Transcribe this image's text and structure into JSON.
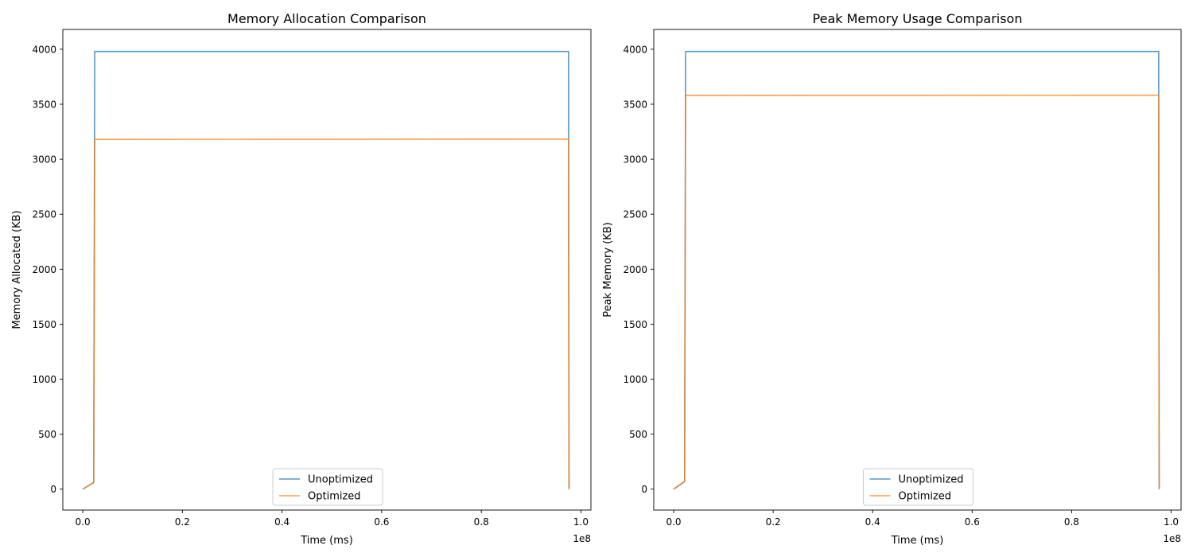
{
  "colors": {
    "unoptimized": "#1f77b4",
    "optimized": "#ff7f0e"
  },
  "chart_data": [
    {
      "type": "line",
      "title": "Memory Allocation Comparison",
      "xlabel": "Time (ms)",
      "ylabel": "Memory Allocated (KB)",
      "x_offset_label": "1e8",
      "xlim": [
        -0.04,
        1.02
      ],
      "ylim": [
        -190,
        4180
      ],
      "x_ticks": [
        0.0,
        0.2,
        0.4,
        0.6,
        0.8,
        1.0
      ],
      "x_tick_labels": [
        "0.0",
        "0.2",
        "0.4",
        "0.6",
        "0.8",
        "1.0"
      ],
      "y_ticks": [
        0,
        500,
        1000,
        1500,
        2000,
        2500,
        3000,
        3500,
        4000
      ],
      "y_tick_labels": [
        "0",
        "500",
        "1000",
        "1500",
        "2000",
        "2500",
        "3000",
        "3500",
        "4000"
      ],
      "grid": false,
      "legend_position": "lower center",
      "series": [
        {
          "name": "Unoptimized",
          "color": "#1f77b4",
          "x": [
            0.0,
            0.022,
            0.024,
            0.975,
            0.976
          ],
          "y": [
            0,
            60,
            3980,
            3980,
            0
          ]
        },
        {
          "name": "Optimized",
          "color": "#ff7f0e",
          "x": [
            0.0,
            0.022,
            0.024,
            0.975,
            0.976
          ],
          "y": [
            0,
            60,
            3180,
            3183,
            0
          ]
        }
      ]
    },
    {
      "type": "line",
      "title": "Peak Memory Usage Comparison",
      "xlabel": "Time (ms)",
      "ylabel": "Peak Memory (KB)",
      "x_offset_label": "1e8",
      "xlim": [
        -0.04,
        1.02
      ],
      "ylim": [
        -190,
        4180
      ],
      "x_ticks": [
        0.0,
        0.2,
        0.4,
        0.6,
        0.8,
        1.0
      ],
      "x_tick_labels": [
        "0.0",
        "0.2",
        "0.4",
        "0.6",
        "0.8",
        "1.0"
      ],
      "y_ticks": [
        0,
        500,
        1000,
        1500,
        2000,
        2500,
        3000,
        3500,
        4000
      ],
      "y_tick_labels": [
        "0",
        "500",
        "1000",
        "1500",
        "2000",
        "2500",
        "3000",
        "3500",
        "4000"
      ],
      "grid": false,
      "legend_position": "lower center",
      "series": [
        {
          "name": "Unoptimized",
          "color": "#1f77b4",
          "x": [
            0.0,
            0.022,
            0.024,
            0.975,
            0.976
          ],
          "y": [
            0,
            70,
            3980,
            3980,
            0
          ]
        },
        {
          "name": "Optimized",
          "color": "#ff7f0e",
          "x": [
            0.0,
            0.022,
            0.024,
            0.975,
            0.976
          ],
          "y": [
            0,
            70,
            3580,
            3582,
            0
          ]
        }
      ]
    }
  ]
}
